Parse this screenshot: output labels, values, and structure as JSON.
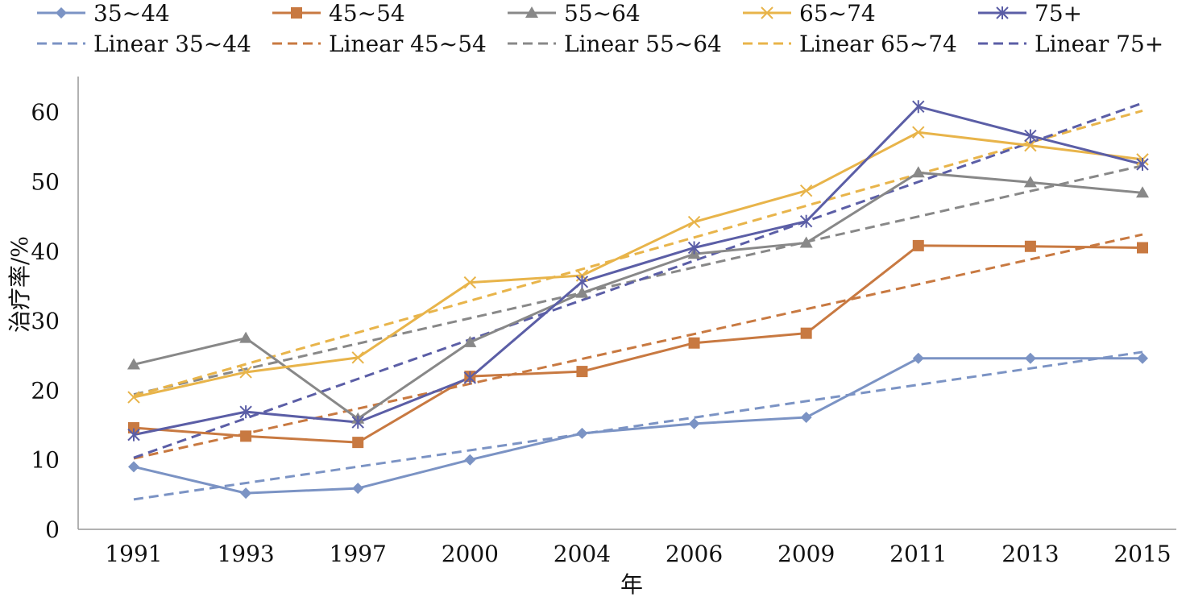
{
  "chart_data": {
    "type": "line",
    "title": "",
    "xlabel": "年",
    "ylabel": "治疗率/%",
    "categories": [
      "1991",
      "1993",
      "1997",
      "2000",
      "2004",
      "2006",
      "2009",
      "2011",
      "2013",
      "2015"
    ],
    "ylim": [
      0,
      65
    ],
    "yticks": [
      0,
      10,
      20,
      30,
      40,
      50,
      60
    ],
    "grid": false,
    "legend_position": "top",
    "series": [
      {
        "name": "35~44",
        "marker": "diamond-icon",
        "color": "#7b93c4",
        "values": [
          9.0,
          5.2,
          5.9,
          10.0,
          13.8,
          15.2,
          16.1,
          24.6,
          24.6,
          24.6
        ]
      },
      {
        "name": "45~54",
        "marker": "square-icon",
        "color": "#c87941",
        "values": [
          14.6,
          13.4,
          12.5,
          22.0,
          22.7,
          26.8,
          28.2,
          40.8,
          40.7,
          40.5
        ]
      },
      {
        "name": "55~64",
        "marker": "triangle-icon",
        "color": "#888888",
        "values": [
          23.7,
          27.5,
          15.9,
          26.9,
          34.0,
          39.6,
          41.2,
          51.3,
          49.9,
          48.4
        ]
      },
      {
        "name": "65~74",
        "marker": "x-icon",
        "color": "#e8b44a",
        "values": [
          19.0,
          22.6,
          24.7,
          35.5,
          36.5,
          44.2,
          48.7,
          57.1,
          55.2,
          53.2
        ]
      },
      {
        "name": "75+",
        "marker": "asterisk-icon",
        "color": "#5b5ea6",
        "values": [
          13.6,
          16.9,
          15.4,
          21.8,
          35.6,
          40.5,
          44.3,
          60.8,
          56.6,
          52.5
        ]
      }
    ],
    "trendlines": [
      {
        "name": "Linear 35~44",
        "color": "#7b93c4",
        "values": [
          4.3,
          25.5
        ]
      },
      {
        "name": "Linear 45~54",
        "color": "#c87941",
        "values": [
          10.2,
          42.4
        ]
      },
      {
        "name": "Linear 55~64",
        "color": "#888888",
        "values": [
          19.4,
          52.3
        ]
      },
      {
        "name": "Linear 65~74",
        "color": "#e8b44a",
        "values": [
          19.2,
          60.2
        ]
      },
      {
        "name": "Linear 75+",
        "color": "#5b5ea6",
        "values": [
          10.3,
          61.3
        ]
      }
    ]
  }
}
